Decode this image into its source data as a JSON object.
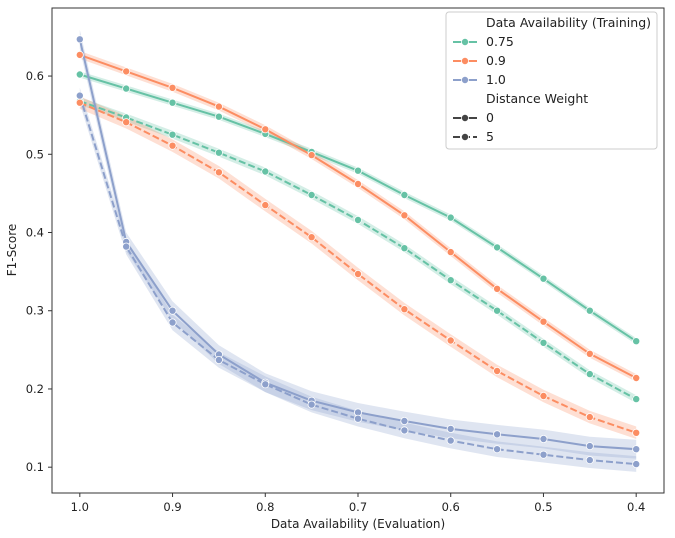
{
  "chart_data": {
    "type": "line",
    "title": "",
    "xlabel": "Data Availability (Evaluation)",
    "ylabel": "F1-Score",
    "x": [
      1.0,
      0.95,
      0.9,
      0.85,
      0.8,
      0.75,
      0.7,
      0.65,
      0.6,
      0.55,
      0.5,
      0.45,
      0.4
    ],
    "x_ticks": [
      1.0,
      0.9,
      0.8,
      0.7,
      0.6,
      0.5,
      0.4
    ],
    "x_tick_labels": [
      "1.0",
      "0.9",
      "0.8",
      "0.7",
      "0.6",
      "0.5",
      "0.4"
    ],
    "x_inverted": true,
    "xlim": [
      1.03,
      0.37
    ],
    "y_ticks": [
      0.1,
      0.2,
      0.3,
      0.4,
      0.5,
      0.6
    ],
    "y_tick_labels": [
      "0.1",
      "0.2",
      "0.3",
      "0.4",
      "0.5",
      "0.6"
    ],
    "ylim": [
      0.067,
      0.687
    ],
    "grid": false,
    "legend_position": "top-right",
    "legend": {
      "hue_title": "Data Availability (Training)",
      "style_title": "Distance Weight",
      "hue_entries": [
        {
          "label": "0.75",
          "color": "#66c2a5"
        },
        {
          "label": "0.9",
          "color": "#fc8d62"
        },
        {
          "label": "1.0",
          "color": "#8da0cb"
        }
      ],
      "style_entries": [
        {
          "label": "0",
          "dash": "solid"
        },
        {
          "label": "5",
          "dash": "dashed"
        }
      ]
    },
    "series": [
      {
        "training": "0.75",
        "distance_weight": "0",
        "color": "#66c2a5",
        "dash": "solid",
        "values": [
          0.602,
          0.584,
          0.566,
          0.548,
          0.526,
          0.503,
          0.479,
          0.448,
          0.419,
          0.381,
          0.341,
          0.3,
          0.261
        ],
        "ci": 0.004
      },
      {
        "training": "0.75",
        "distance_weight": "5",
        "color": "#66c2a5",
        "dash": "dashed",
        "values": [
          0.568,
          0.547,
          0.525,
          0.502,
          0.478,
          0.448,
          0.416,
          0.38,
          0.339,
          0.3,
          0.259,
          0.219,
          0.187
        ],
        "ci": 0.005
      },
      {
        "training": "0.9",
        "distance_weight": "0",
        "color": "#fc8d62",
        "dash": "solid",
        "values": [
          0.627,
          0.606,
          0.585,
          0.561,
          0.532,
          0.499,
          0.462,
          0.422,
          0.375,
          0.328,
          0.286,
          0.245,
          0.214
        ],
        "ci": 0.005
      },
      {
        "training": "0.9",
        "distance_weight": "5",
        "color": "#fc8d62",
        "dash": "dashed",
        "values": [
          0.566,
          0.541,
          0.511,
          0.477,
          0.435,
          0.394,
          0.347,
          0.302,
          0.262,
          0.223,
          0.191,
          0.164,
          0.144
        ],
        "ci": 0.008
      },
      {
        "training": "1.0",
        "distance_weight": "0",
        "color": "#8da0cb",
        "dash": "solid",
        "values": [
          0.647,
          0.388,
          0.3,
          0.244,
          0.208,
          0.185,
          0.17,
          0.159,
          0.149,
          0.142,
          0.136,
          0.127,
          0.123
        ],
        "ci": 0.012
      },
      {
        "training": "1.0",
        "distance_weight": "5",
        "color": "#8da0cb",
        "dash": "dashed",
        "values": [
          0.575,
          0.382,
          0.285,
          0.237,
          0.206,
          0.18,
          0.162,
          0.147,
          0.134,
          0.123,
          0.116,
          0.109,
          0.104
        ],
        "ci": 0.01
      }
    ]
  }
}
